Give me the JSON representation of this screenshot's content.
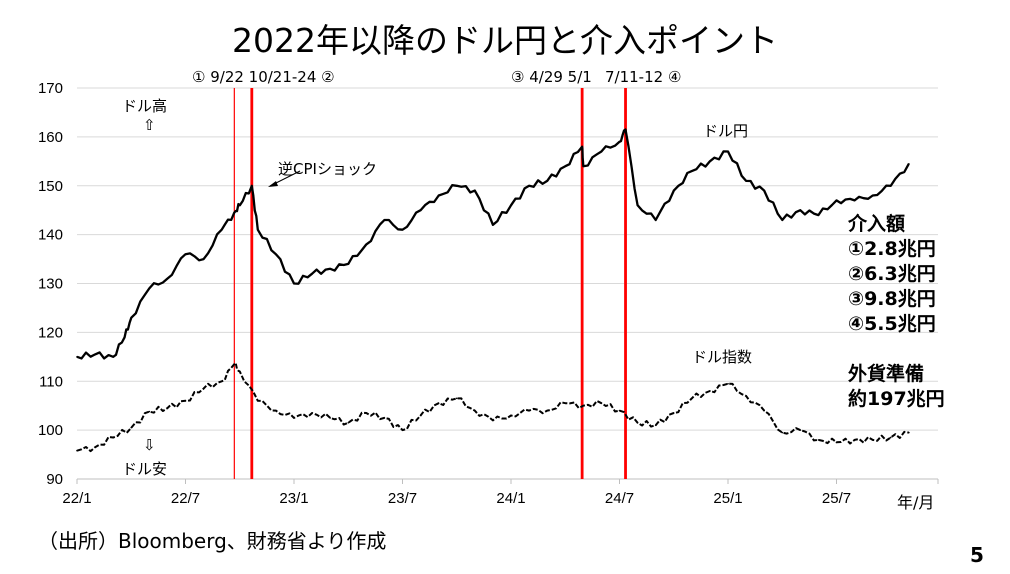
{
  "title": "2022年以降のドル円と介入ポイント",
  "source": "（出所）Bloomberg、財務省より作成",
  "page_number": "5",
  "chart_data": {
    "type": "line",
    "title": "2022年以降のドル円と介入ポイント",
    "xlabel": "年/月",
    "ylabel": "",
    "ylim": [
      90,
      170
    ],
    "yticks": [
      "90",
      "100",
      "110",
      "120",
      "130",
      "140",
      "150",
      "160",
      "170"
    ],
    "xticks": [
      {
        "label": "22/1",
        "date": "2022-01"
      },
      {
        "label": "22/7",
        "date": "2022-07"
      },
      {
        "label": "23/1",
        "date": "2023-01"
      },
      {
        "label": "23/7",
        "date": "2023-07"
      },
      {
        "label": "24/1",
        "date": "2024-01"
      },
      {
        "label": "24/7",
        "date": "2024-07"
      },
      {
        "label": "25/1",
        "date": "2025-01"
      },
      {
        "label": "25/7",
        "date": "2025-07"
      }
    ],
    "grid": true,
    "series": [
      {
        "name": "ドル円",
        "style": "solid",
        "color": "#000000",
        "x": [
          "2022-01",
          "2022-02",
          "2022-03",
          "2022-03-20",
          "2022-04",
          "2022-05",
          "2022-06",
          "2022-07",
          "2022-08",
          "2022-09",
          "2022-09-22",
          "2022-10",
          "2022-10-21",
          "2022-11",
          "2022-12",
          "2023-01",
          "2023-02",
          "2023-03",
          "2023-04",
          "2023-05",
          "2023-06",
          "2023-07",
          "2023-08",
          "2023-09",
          "2023-10",
          "2023-11",
          "2023-12",
          "2024-01",
          "2024-02",
          "2024-03",
          "2024-04",
          "2024-04-29",
          "2024-05",
          "2024-06",
          "2024-07",
          "2024-07-11",
          "2024-08",
          "2024-09",
          "2024-10",
          "2024-11",
          "2024-12",
          "2025-01",
          "2025-02",
          "2025-03",
          "2025-04",
          "2025-05",
          "2025-06",
          "2025-07",
          "2025-08",
          "2025-09",
          "2025-10",
          "2025-11"
        ],
        "y": [
          115,
          115.5,
          115,
          119,
          123,
          129,
          131,
          136,
          135,
          141,
          144.5,
          146,
          150,
          141,
          136,
          130,
          132,
          133,
          134,
          138,
          143,
          141,
          145,
          148,
          150,
          149,
          142,
          146,
          150,
          151,
          154,
          158,
          154,
          157,
          159,
          161.5,
          146,
          143,
          149,
          153,
          155,
          157,
          151,
          149,
          143,
          145,
          144,
          147,
          147,
          148,
          150,
          154.5
        ]
      },
      {
        "name": "ドル指数",
        "style": "dashed",
        "color": "#000000",
        "x": [
          "2022-01",
          "2022-02",
          "2022-03",
          "2022-04",
          "2022-05",
          "2022-06",
          "2022-07",
          "2022-08",
          "2022-09",
          "2022-09-22",
          "2022-10",
          "2022-11",
          "2022-12",
          "2023-01",
          "2023-02",
          "2023-03",
          "2023-04",
          "2023-05",
          "2023-06",
          "2023-07",
          "2023-08",
          "2023-09",
          "2023-10",
          "2023-11",
          "2023-12",
          "2024-01",
          "2024-02",
          "2024-03",
          "2024-04",
          "2024-05",
          "2024-06",
          "2024-07",
          "2024-08",
          "2024-09",
          "2024-10",
          "2024-11",
          "2024-12",
          "2025-01",
          "2025-02",
          "2025-03",
          "2025-04",
          "2025-05",
          "2025-06",
          "2025-07",
          "2025-08",
          "2025-09",
          "2025-10",
          "2025-11"
        ],
        "y": [
          95.8,
          96.5,
          98.5,
          100.5,
          103.8,
          104.5,
          106,
          108.5,
          110,
          113.5,
          112,
          106,
          104,
          102.5,
          103.5,
          102.5,
          101.5,
          103.5,
          102.5,
          100,
          103,
          105.5,
          106.5,
          104,
          102,
          103,
          104,
          104,
          105.5,
          105,
          105.5,
          104,
          101.5,
          101,
          103.5,
          106.5,
          108,
          109.5,
          107,
          104,
          99.5,
          100,
          98,
          97.5,
          98,
          98,
          98.5,
          99.5
        ]
      }
    ],
    "interventions": [
      {
        "label": "① 9/22",
        "date": "2022-09-22",
        "amount": "①2.8兆円",
        "color": "#ff0000"
      },
      {
        "label": "10/21-24 ②",
        "date": "2022-10-21",
        "amount": "②6.3兆円",
        "color": "#ff0000"
      },
      {
        "label": "③ 4/29",
        "date": "2024-04-29",
        "amount": "③9.8兆円",
        "color": "#ff0000"
      },
      {
        "label": "7/11-12 ④",
        "date": "2024-07-11",
        "amount": "④5.5兆円",
        "color": "#ff0000"
      }
    ],
    "intervention_top_labels": [
      "① 9/22  10/21-24 ②",
      "③ 4/29 5/1",
      "7/11-12 ④"
    ],
    "annotations": {
      "dollar_high": "ドル高",
      "up_arrow": "⇧",
      "dollar_low": "ドル安",
      "down_arrow": "⇩",
      "cpi_shock": "逆CPIショック",
      "usdjpy_label": "ドル円",
      "dxy_label": "ドル指数",
      "intervention_header": "介入額",
      "reserves_line1": "外貨準備",
      "reserves_line2": "約197兆円"
    }
  }
}
